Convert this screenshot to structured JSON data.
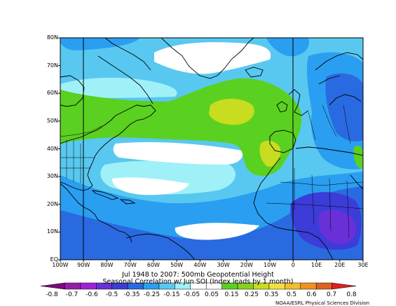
{
  "map": {
    "lat_labels": [
      "80N",
      "70N",
      "60N",
      "50N",
      "40N",
      "30N",
      "20N",
      "10N",
      "EQ"
    ],
    "lon_labels": [
      "100W",
      "90W",
      "80W",
      "70W",
      "60W",
      "50W",
      "40W",
      "30W",
      "20W",
      "10W",
      "0",
      "10E",
      "20E",
      "30E"
    ],
    "extent": {
      "lon_min": -100,
      "lon_max": 30,
      "lat_min": 0,
      "lat_max": 80
    },
    "reference_meridians": [
      -90,
      0
    ]
  },
  "caption": {
    "line1": "Jul 1948 to 2007: 500mb Geopotential Height",
    "line2": "Seasonal Correlation w/ Jun SOI (Index leads by 1 month)"
  },
  "colorbar": {
    "labels": [
      "-0.8",
      "-0.7",
      "-0.6",
      "-0.5",
      "-0.35",
      "-0.25",
      "-0.15",
      "-0.05",
      "0.05",
      "0.15",
      "0.25",
      "0.35",
      "0.5",
      "0.6",
      "0.7",
      "0.8"
    ],
    "colors": [
      "#7a0a7a",
      "#9a1aa8",
      "#a020d8",
      "#6a30d8",
      "#3c3cd8",
      "#2a6ae0",
      "#2a9ef0",
      "#58c8f0",
      "#a0f0f8",
      "#ffffff",
      "#ffffff",
      "#5ad020",
      "#88d020",
      "#c8dc20",
      "#f0e040",
      "#f0c030",
      "#f09020",
      "#e06020",
      "#e02020"
    ]
  },
  "credit": "NOAA/ESRL Physical Sciences Division",
  "colors": {
    "neg1": "#2a6ae0",
    "neg2": "#2a9ef0",
    "neg3": "#58c8f0",
    "neg4": "#a0f0f8",
    "deep_blue": "#3c3cd8",
    "purple": "#6a30d8",
    "green": "#5ad020",
    "yellow_green": "#c8dc20"
  }
}
